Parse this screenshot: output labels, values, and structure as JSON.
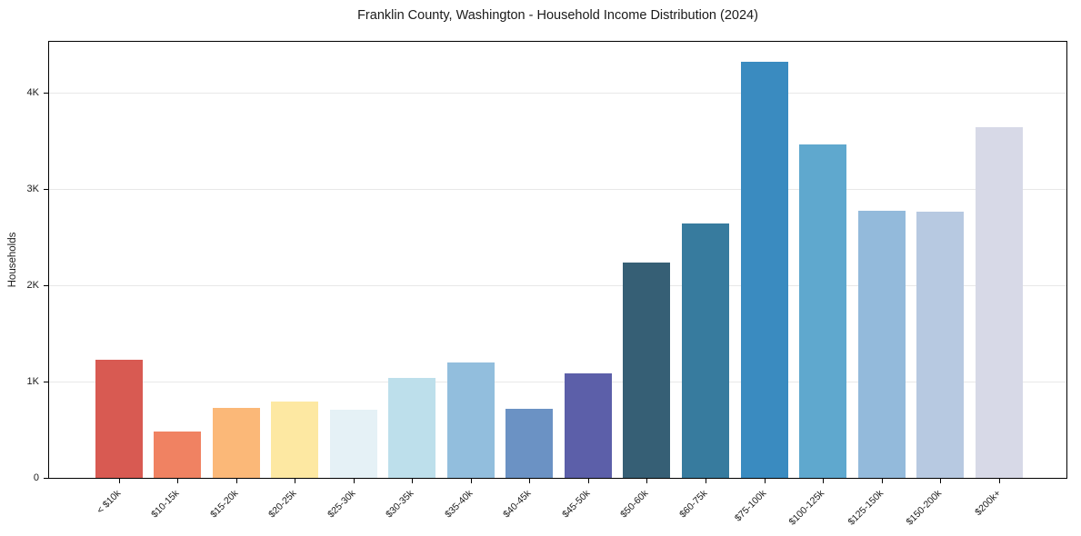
{
  "chart_data": {
    "type": "bar",
    "title": "Franklin County, Washington - Household Income Distribution (2024)",
    "xlabel": "",
    "ylabel": "Households",
    "categories": [
      "< $10k",
      "$10-15k",
      "$15-20k",
      "$20-25k",
      "$25-30k",
      "$30-35k",
      "$35-40k",
      "$40-45k",
      "$45-50k",
      "$50-60k",
      "$60-75k",
      "$75-100k",
      "$100-125k",
      "$125-150k",
      "$150-200k",
      "$200k+"
    ],
    "values": [
      1230,
      485,
      730,
      790,
      710,
      1040,
      1200,
      715,
      1090,
      2235,
      2645,
      4325,
      3470,
      2775,
      2765,
      3645
    ],
    "bar_colors": [
      "#d85a52",
      "#f08262",
      "#fbb878",
      "#fde8a2",
      "#e5f1f6",
      "#bddfeb",
      "#92bedd",
      "#6b92c4",
      "#5c5fa9",
      "#365f75",
      "#377b9e",
      "#3a8bc0",
      "#5fa8ce",
      "#93badb",
      "#b7c9e1",
      "#d7d9e7"
    ],
    "yticks": [
      {
        "value": 0,
        "label": "0"
      },
      {
        "value": 1000,
        "label": "1K"
      },
      {
        "value": 2000,
        "label": "2K"
      },
      {
        "value": 3000,
        "label": "3K"
      },
      {
        "value": 4000,
        "label": "4K"
      }
    ],
    "ylim": [
      0,
      4533
    ],
    "gridlines": {
      "horizontal_values": [
        1000,
        2000,
        3000,
        4000
      ],
      "vertical": false,
      "color": "#e8e8e8"
    },
    "legend_position": "none",
    "styles": {
      "spine_color": "#000000",
      "tick_color": "#000000",
      "text_color": "#1a1a1a",
      "background": "#ffffff"
    }
  }
}
